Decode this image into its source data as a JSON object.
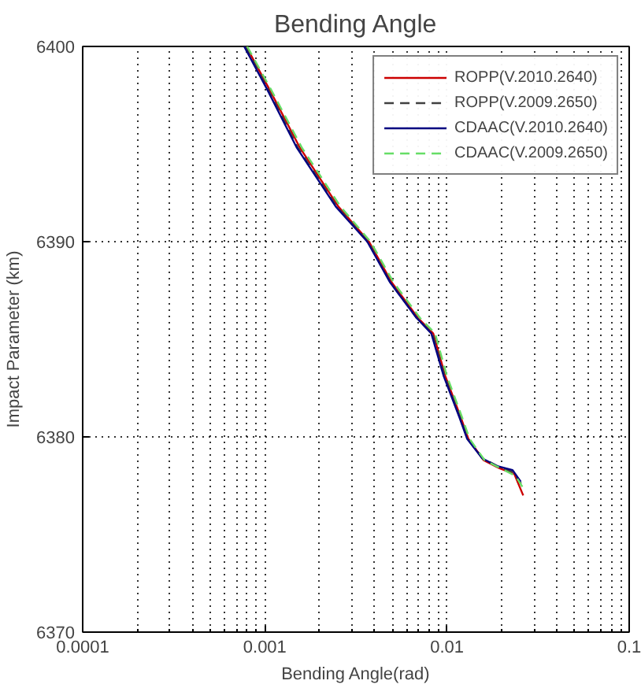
{
  "chart_data": {
    "type": "line",
    "title": "Bending Angle",
    "xlabel": "Bending Angle(rad)",
    "ylabel": "Impact Parameter (km)",
    "log": "x",
    "xlim": [
      0.0001,
      0.1
    ],
    "xticks": [
      0.0001,
      0.001,
      0.01,
      0.1
    ],
    "ylim": [
      6370,
      6400
    ],
    "yticks": [
      6370,
      6380,
      6390,
      6400
    ],
    "grid": true,
    "legend": "top right",
    "series": [
      {
        "name": "ROPP(V.2010.2640)",
        "color": "#cc0000",
        "line_style": "solid",
        "x": [
          0.00079,
          0.00106,
          0.00156,
          0.00253,
          0.00373,
          0.00498,
          0.00692,
          0.0084,
          0.0098,
          0.0119,
          0.0131,
          0.0159,
          0.0193,
          0.0234,
          0.0262
        ],
        "values": [
          6400,
          6397.8,
          6394.8,
          6391.8,
          6390,
          6387.9,
          6386.1,
          6385.3,
          6383.1,
          6381,
          6379.9,
          6378.8,
          6378.4,
          6378.1,
          6377.0
        ]
      },
      {
        "name": "ROPP(V.2009.2650)",
        "color": "#404040",
        "line_style": "dashed",
        "x": [
          0.00078,
          0.00104,
          0.00152,
          0.00248,
          0.00368,
          0.0049,
          0.0068,
          0.0083,
          0.0097,
          0.0118,
          0.013,
          0.0157,
          0.019,
          0.023,
          0.0255
        ],
        "values": [
          6400,
          6397.8,
          6394.8,
          6391.8,
          6390,
          6387.9,
          6386.1,
          6385.3,
          6383.1,
          6381,
          6379.9,
          6378.9,
          6378.5,
          6378.2,
          6377.6
        ]
      },
      {
        "name": "CDAAC(V.2010.2640)",
        "color": "#000080",
        "line_style": "solid",
        "x": [
          0.00077,
          0.00103,
          0.0015,
          0.00245,
          0.00365,
          0.00488,
          0.0068,
          0.0082,
          0.0096,
          0.0117,
          0.0129,
          0.0156,
          0.0189,
          0.0229,
          0.0254
        ],
        "values": [
          6400,
          6397.8,
          6394.8,
          6391.8,
          6390,
          6387.9,
          6386.1,
          6385.3,
          6383.1,
          6381,
          6379.9,
          6378.9,
          6378.5,
          6378.3,
          6377.7
        ]
      },
      {
        "name": "CDAAC(V.2009.2650)",
        "color": "#66dd66",
        "line_style": "dashed",
        "x": [
          0.0008,
          0.00108,
          0.0016,
          0.0026,
          0.0038,
          0.0051,
          0.0071,
          0.0086,
          0.01,
          0.0121,
          0.0133,
          0.0161,
          0.0196,
          0.0238,
          0.0265
        ],
        "values": [
          6400,
          6397.8,
          6394.8,
          6391.8,
          6390,
          6387.9,
          6386.1,
          6385.3,
          6383.1,
          6381,
          6379.9,
          6378.8,
          6378.4,
          6378.0,
          6377.3
        ]
      }
    ]
  }
}
